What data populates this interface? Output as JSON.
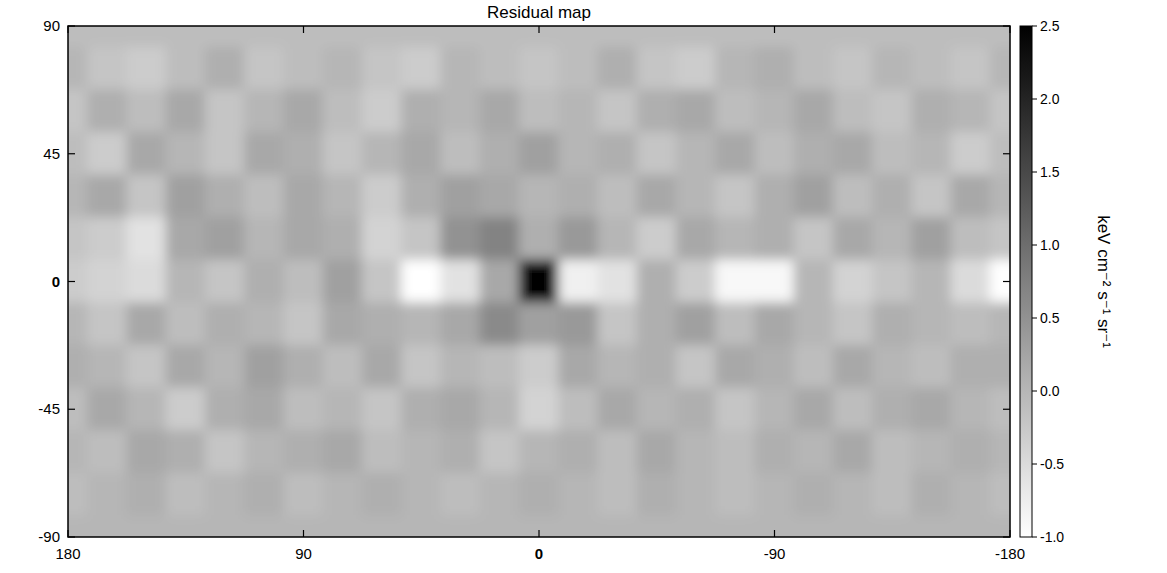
{
  "chart_data": {
    "type": "heatmap",
    "title": "Residual map",
    "x": [
      180,
      165,
      150,
      135,
      120,
      105,
      90,
      75,
      60,
      45,
      30,
      15,
      0,
      -15,
      -30,
      -45,
      -60,
      -75,
      -90,
      -105,
      -120,
      -135,
      -150,
      -165,
      -180
    ],
    "y": [
      90,
      75,
      60,
      45,
      30,
      15,
      0,
      -15,
      -30,
      -45,
      -60,
      -75,
      -90
    ],
    "values": [
      [
        -0.1,
        -0.1,
        -0.1,
        -0.1,
        -0.1,
        -0.1,
        -0.1,
        -0.1,
        -0.1,
        -0.1,
        -0.1,
        -0.1,
        -0.1,
        -0.1,
        -0.1,
        -0.1,
        -0.1,
        -0.1,
        -0.1,
        -0.1,
        -0.1,
        -0.1,
        -0.1,
        -0.1,
        -0.1
      ],
      [
        0.0,
        -0.2,
        -0.3,
        -0.1,
        0.1,
        -0.2,
        -0.1,
        0.0,
        -0.2,
        -0.3,
        0.0,
        -0.1,
        -0.2,
        -0.1,
        0.1,
        -0.2,
        -0.3,
        0.0,
        0.1,
        -0.1,
        -0.2,
        0.0,
        -0.1,
        -0.2,
        0.0
      ],
      [
        -0.2,
        0.1,
        -0.1,
        0.2,
        -0.2,
        0.0,
        0.2,
        -0.1,
        -0.3,
        0.1,
        0.0,
        0.2,
        -0.1,
        0.0,
        -0.2,
        0.1,
        0.2,
        -0.1,
        0.0,
        0.2,
        -0.1,
        -0.2,
        0.1,
        0.0,
        -0.2
      ],
      [
        -0.1,
        -0.3,
        0.2,
        0.0,
        -0.2,
        0.2,
        0.1,
        -0.2,
        0.0,
        0.2,
        -0.1,
        0.1,
        0.3,
        0.0,
        0.1,
        -0.2,
        0.0,
        0.2,
        -0.1,
        0.1,
        0.2,
        -0.1,
        0.0,
        -0.3,
        -0.1
      ],
      [
        0.0,
        0.2,
        -0.2,
        0.3,
        0.1,
        -0.1,
        0.2,
        0.0,
        -0.3,
        0.1,
        0.3,
        0.2,
        0.0,
        0.1,
        -0.1,
        0.2,
        0.0,
        -0.2,
        0.1,
        0.3,
        -0.1,
        0.1,
        -0.2,
        0.2,
        0.0
      ],
      [
        -0.2,
        -0.3,
        -0.6,
        0.2,
        0.3,
        0.0,
        0.2,
        0.1,
        -0.4,
        -0.2,
        0.5,
        0.7,
        0.1,
        0.4,
        0.0,
        -0.3,
        0.2,
        0.0,
        0.1,
        -0.2,
        0.2,
        0.0,
        0.3,
        -0.1,
        -0.2
      ],
      [
        -0.3,
        -0.4,
        -0.5,
        0.0,
        -0.2,
        0.1,
        -0.1,
        0.3,
        -0.2,
        -1.0,
        -0.6,
        0.2,
        2.5,
        -0.8,
        -0.6,
        0.1,
        -0.3,
        -0.9,
        -0.9,
        0.0,
        -0.4,
        -0.2,
        0.0,
        -0.5,
        -1.0
      ],
      [
        0.0,
        -0.2,
        0.2,
        -0.1,
        0.1,
        0.0,
        -0.2,
        0.2,
        0.1,
        0.0,
        0.2,
        0.6,
        0.3,
        0.4,
        -0.2,
        0.1,
        0.3,
        -0.1,
        0.2,
        0.0,
        -0.2,
        0.1,
        0.0,
        -0.1,
        0.0
      ],
      [
        0.1,
        0.0,
        -0.2,
        0.2,
        0.0,
        0.3,
        0.1,
        -0.1,
        0.2,
        -0.2,
        0.0,
        -0.1,
        -0.3,
        0.2,
        0.0,
        0.1,
        -0.2,
        0.2,
        0.1,
        -0.1,
        0.2,
        0.0,
        -0.1,
        0.1,
        0.1
      ],
      [
        -0.1,
        0.2,
        0.0,
        -0.3,
        0.1,
        0.2,
        -0.1,
        0.0,
        -0.2,
        0.1,
        0.2,
        0.0,
        -0.4,
        -0.1,
        0.2,
        0.0,
        0.1,
        -0.2,
        0.0,
        0.2,
        -0.1,
        0.1,
        0.2,
        0.0,
        -0.1
      ],
      [
        0.0,
        -0.1,
        0.2,
        0.1,
        -0.2,
        0.0,
        0.1,
        0.2,
        -0.1,
        0.0,
        0.1,
        -0.2,
        0.0,
        0.1,
        -0.1,
        0.2,
        0.0,
        -0.1,
        0.1,
        0.0,
        0.2,
        -0.1,
        0.0,
        0.1,
        0.0
      ],
      [
        -0.1,
        0.0,
        0.1,
        -0.1,
        0.0,
        0.1,
        -0.1,
        0.0,
        0.1,
        0.0,
        -0.1,
        0.0,
        0.1,
        0.0,
        -0.1,
        0.1,
        0.0,
        -0.1,
        0.0,
        0.1,
        0.0,
        -0.1,
        0.1,
        0.0,
        -0.1
      ],
      [
        0.0,
        0.0,
        0.0,
        0.0,
        0.0,
        0.0,
        0.0,
        0.0,
        0.0,
        0.0,
        0.0,
        0.0,
        0.0,
        0.0,
        0.0,
        0.0,
        0.0,
        0.0,
        0.0,
        0.0,
        0.0,
        0.0,
        0.0,
        0.0,
        0.0
      ]
    ],
    "xlim": [
      180,
      -180
    ],
    "xticks": [
      180,
      90,
      0,
      -90,
      -180
    ],
    "ylim": [
      -90,
      90
    ],
    "yticks": [
      90,
      45,
      0,
      -45,
      -90
    ],
    "grid": false,
    "colorbar_range": [
      -1.0,
      2.5
    ],
    "colorbar_ticks": [
      2.5,
      {
        "value": 2,
        "label": "2.0"
      },
      1.5,
      {
        "value": 1,
        "label": "1.0"
      },
      0.5,
      {
        "value": 0,
        "label": "0.0"
      },
      -0.5,
      {
        "value": -1,
        "label": "-1.0"
      }
    ],
    "colorbar_label": "keV cm⁻² s⁻¹ sr⁻¹"
  }
}
